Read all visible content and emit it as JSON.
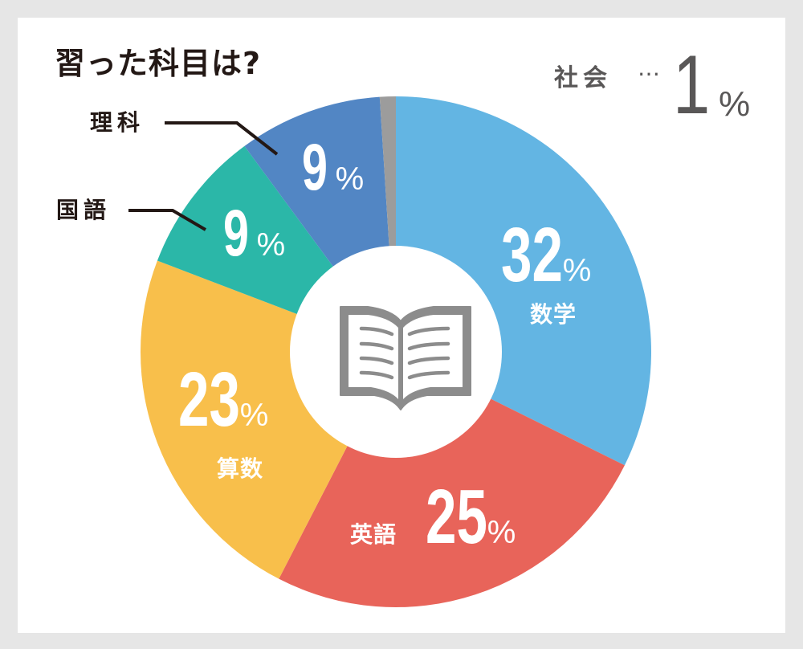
{
  "title": "習った科目は?",
  "other_note": {
    "name": "社会",
    "dots": "…",
    "value": "1",
    "unit": "%"
  },
  "colors": {
    "math": "#63b5e3",
    "english": "#e8645a",
    "arithmetic": "#f8bf4b",
    "japanese": "#2bb7a8",
    "science": "#5286c4",
    "social": "#9c9c9c",
    "icon": "#8c8c8c",
    "text_dark": "#231815",
    "text_gray": "#595757"
  },
  "segments": [
    {
      "name": "数学",
      "value": "32",
      "unit": "%"
    },
    {
      "name": "英語",
      "value": "25",
      "unit": "%"
    },
    {
      "name": "算数",
      "value": "23",
      "unit": "%"
    },
    {
      "name": "国語",
      "value": "9",
      "unit": "%"
    },
    {
      "name": "理科",
      "value": "9",
      "unit": "%"
    },
    {
      "name": "社会",
      "value": "1",
      "unit": "%"
    }
  ],
  "center_icon": "open-book-icon",
  "chart_data": {
    "type": "pie",
    "variant": "donut",
    "title": "習った科目は?",
    "categories": [
      "数学",
      "英語",
      "算数",
      "国語",
      "理科",
      "社会"
    ],
    "values": [
      32,
      25,
      23,
      9,
      9,
      1
    ],
    "unit": "%",
    "start_angle": "top (12 o'clock), clockwise",
    "colors": [
      "#63b5e3",
      "#e8645a",
      "#f8bf4b",
      "#2bb7a8",
      "#5286c4",
      "#9c9c9c"
    ],
    "annotations": [
      "理科 (leader line)",
      "国語 (leader line)",
      "社会 … 1%"
    ]
  }
}
